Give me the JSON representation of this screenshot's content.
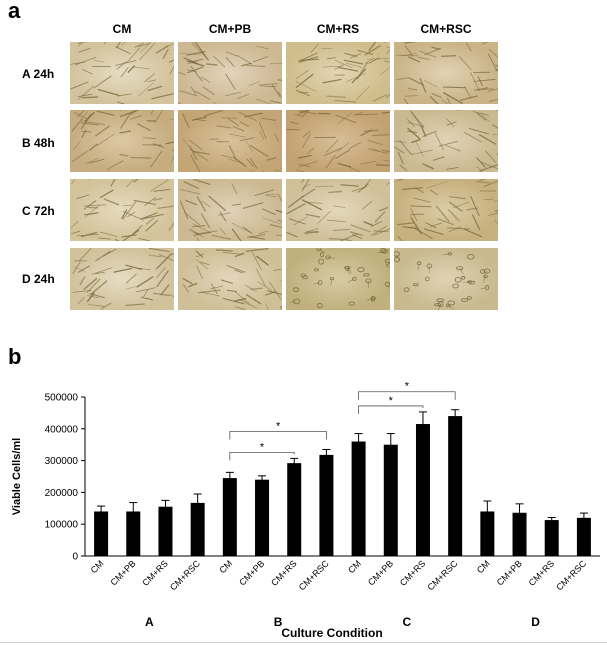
{
  "panel_a": {
    "label": "a",
    "columns": [
      "CM",
      "CM+PB",
      "CM+RS",
      "CM+RSC"
    ],
    "rows": [
      "A 24h",
      "B 48h",
      "C 72h",
      "D 24h"
    ]
  },
  "panel_b": {
    "label": "b"
  },
  "colors": {
    "bar": "#000000",
    "image_light": "#e8dcc0",
    "image_dark": "#cdbd92",
    "cell": "#7a6a3e"
  },
  "chart_data": {
    "type": "bar",
    "xlabel": "Culture Condition",
    "ylabel": "Viable Cells/ml",
    "ylim": [
      0,
      500000
    ],
    "yticks": [
      0,
      100000,
      200000,
      300000,
      400000,
      500000
    ],
    "groups": [
      "A",
      "B",
      "C",
      "D"
    ],
    "categories": [
      "CM",
      "CM+PB",
      "CM+RS",
      "CM+RSC",
      "CM",
      "CM+PB",
      "CM+RS",
      "CM+RSC",
      "CM",
      "CM+PB",
      "CM+RS",
      "CM+RSC",
      "CM",
      "CM+PB",
      "CM+RS",
      "CM+RSC"
    ],
    "values": [
      140000,
      140000,
      155000,
      167000,
      245000,
      240000,
      292000,
      318000,
      360000,
      350000,
      415000,
      440000,
      140000,
      136000,
      113000,
      120000
    ],
    "errors": [
      17000,
      28000,
      20000,
      28000,
      18000,
      12000,
      15000,
      17000,
      25000,
      35000,
      38000,
      20000,
      33000,
      28000,
      8000,
      15000
    ],
    "significance": [
      {
        "from": 4,
        "to": 6,
        "label": "*"
      },
      {
        "from": 4,
        "to": 7,
        "label": "*"
      },
      {
        "from": 8,
        "to": 10,
        "label": "*"
      },
      {
        "from": 8,
        "to": 11,
        "label": "*"
      }
    ]
  }
}
